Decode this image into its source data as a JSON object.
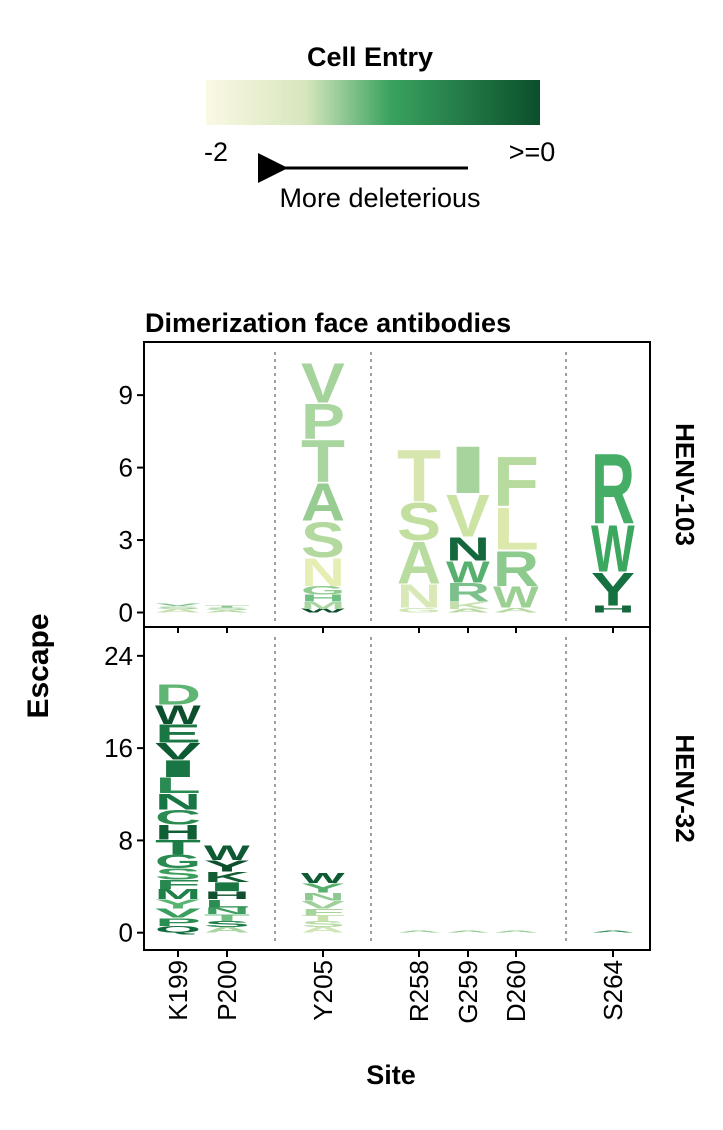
{
  "chart_data": {
    "type": "logo",
    "title": "Dimerization face antibodies",
    "xlabel": "Site",
    "ylabel": "Escape",
    "sites": [
      "K199",
      "P200",
      "Y205",
      "R258",
      "G259",
      "D260",
      "S264"
    ],
    "legend": {
      "title": "Cell Entry",
      "min_label": "-2",
      "max_label": ">=0",
      "arrow_label": "More deleterious",
      "colors": [
        "#fbf9e4",
        "#d6e6bd",
        "#3aa35f",
        "#0b4f2c"
      ]
    },
    "panels": [
      {
        "name": "HENV-103",
        "ylim": [
          -0.6,
          11.2
        ],
        "yticks": [
          0,
          3,
          6,
          9
        ],
        "stacks": {
          "K199": [
            [
              "A",
              0.15,
              "#c8e0b0"
            ],
            [
              "S",
              0.12,
              "#9fd09a"
            ],
            [
              "V",
              0.12,
              "#7fc08a"
            ]
          ],
          "P200": [
            [
              "A",
              0.1,
              "#b9dba6"
            ],
            [
              "S",
              0.1,
              "#a4d39d"
            ],
            [
              "T",
              0.08,
              "#8ec690"
            ]
          ],
          "Y205": [
            [
              "W",
              0.15,
              "#0b4f2c"
            ],
            [
              "M",
              0.3,
              "#a8d5a0"
            ],
            [
              "H",
              0.3,
              "#6fbf83"
            ],
            [
              "G",
              0.35,
              "#8fca8e"
            ],
            [
              "N",
              1.2,
              "#e7eeb4"
            ],
            [
              "S",
              1.5,
              "#b4d99f"
            ],
            [
              "A",
              1.6,
              "#97cc92"
            ],
            [
              "T",
              1.8,
              "#a9d59e"
            ],
            [
              "P",
              1.5,
              "#aad69f"
            ],
            [
              "V",
              1.7,
              "#a5d39c"
            ]
          ],
          "R258": [
            [
              "G",
              0.2,
              "#cfe5b4"
            ],
            [
              "N",
              1.0,
              "#d8e8b6"
            ],
            [
              "A",
              1.8,
              "#b8db9f"
            ],
            [
              "S",
              1.6,
              "#c2df9f"
            ],
            [
              "T",
              2.2,
              "#d7e6ae"
            ]
          ],
          "G259": [
            [
              "A",
              0.15,
              "#b7d9a3"
            ],
            [
              "K",
              0.3,
              "#c4dfaa"
            ],
            [
              "R",
              0.8,
              "#7cc18b"
            ],
            [
              "W",
              0.9,
              "#58b06e"
            ],
            [
              "N",
              1.0,
              "#15683d"
            ],
            [
              "V",
              1.8,
              "#cce3a3"
            ],
            [
              "I",
              2.0,
              "#a6d49c"
            ]
          ],
          "D260": [
            [
              "A",
              0.2,
              "#b8daa3"
            ],
            [
              "W",
              0.9,
              "#9ccf93"
            ],
            [
              "R",
              1.5,
              "#8ccb8d"
            ],
            [
              "L",
              1.8,
              "#dbe9ad"
            ],
            [
              "F",
              2.1,
              "#b7da9e"
            ]
          ],
          "S264": [
            [
              "H",
              0.3,
              "#15683d"
            ],
            [
              "Y",
              1.4,
              "#15713f"
            ],
            [
              "W",
              2.0,
              "#3ba75f"
            ],
            [
              "R",
              3.0,
              "#45ad66"
            ]
          ]
        }
      },
      {
        "name": "HENV-32",
        "ylim": [
          -1.5,
          26.5
        ],
        "yticks": [
          0,
          8,
          16,
          24
        ],
        "stacks": {
          "K199": [
            [
              "Q",
              0.6,
              "#116c3d"
            ],
            [
              "P",
              0.7,
              "#2a8e54"
            ],
            [
              "V",
              0.8,
              "#3a9e60"
            ],
            [
              "Y",
              0.8,
              "#59b474"
            ],
            [
              "M",
              0.9,
              "#1f8048"
            ],
            [
              "F",
              0.8,
              "#27894f"
            ],
            [
              "S",
              1.0,
              "#3d9e60"
            ],
            [
              "G",
              1.2,
              "#2a8b52"
            ],
            [
              "T",
              1.3,
              "#1c7c46"
            ],
            [
              "H",
              1.3,
              "#0f5f35"
            ],
            [
              "C",
              1.3,
              "#2b8c52"
            ],
            [
              "N",
              1.4,
              "#187644"
            ],
            [
              "L",
              1.4,
              "#2a8b52"
            ],
            [
              "I",
              1.5,
              "#187644"
            ],
            [
              "V",
              1.5,
              "#0e5a33"
            ],
            [
              "E",
              1.6,
              "#1a7744"
            ],
            [
              "W",
              1.7,
              "#0b4f2c"
            ],
            [
              "D",
              1.8,
              "#5fb574"
            ]
          ],
          "P200": [
            [
              "A",
              0.5,
              "#a9d5a0"
            ],
            [
              "S",
              0.5,
              "#1c7c46"
            ],
            [
              "T",
              0.6,
              "#6fbd80"
            ],
            [
              "N",
              0.6,
              "#3e9e61"
            ],
            [
              "L",
              0.7,
              "#2c8d53"
            ],
            [
              "H",
              0.7,
              "#124f2e"
            ],
            [
              "I",
              0.8,
              "#1a7744"
            ],
            [
              "K",
              0.9,
              "#125d34"
            ],
            [
              "Y",
              1.0,
              "#0b4f2c"
            ],
            [
              "W",
              1.3,
              "#0e5a33"
            ]
          ],
          "Y205": [
            [
              "A",
              0.5,
              "#cfe5b4"
            ],
            [
              "S",
              0.5,
              "#b7daa4"
            ],
            [
              "T",
              0.5,
              "#c9e2ac"
            ],
            [
              "F",
              0.6,
              "#a6d49c"
            ],
            [
              "V",
              0.7,
              "#9fd09a"
            ],
            [
              "N",
              0.7,
              "#8cc88f"
            ],
            [
              "Y",
              0.8,
              "#58b06e"
            ],
            [
              "W",
              0.9,
              "#0e5a33"
            ]
          ],
          "R258": [
            [
              "A",
              0.15,
              "#8bc88e"
            ]
          ],
          "G259": [
            [
              "A",
              0.15,
              "#8bc88e"
            ]
          ],
          "D260": [
            [
              "A",
              0.15,
              "#8bc88e"
            ]
          ],
          "S264": [
            [
              "A",
              0.15,
              "#2a8b52"
            ]
          ]
        }
      }
    ]
  }
}
